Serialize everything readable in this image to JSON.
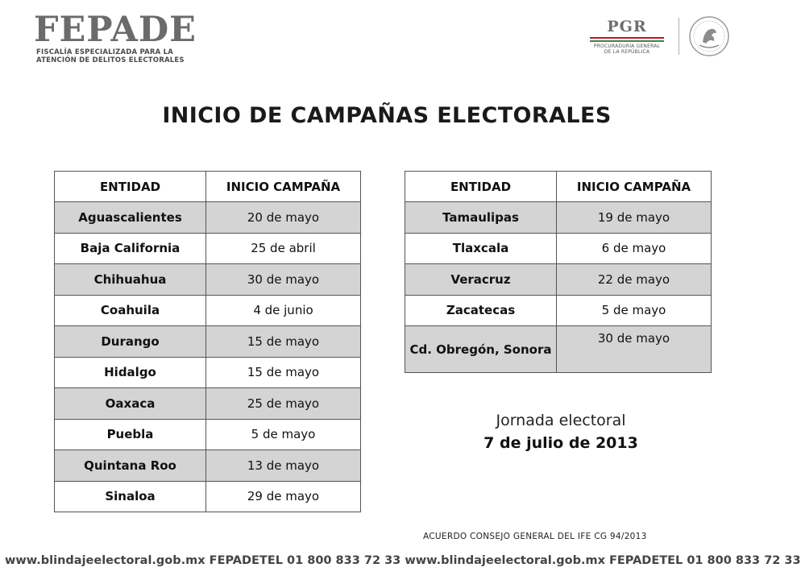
{
  "header": {
    "fepade_word": "FEPADE",
    "fepade_line1": "FISCALÍA ESPECIALIZADA PARA LA",
    "fepade_line2": "ATENCIÓN DE DELITOS ELECTORALES",
    "pgr_word": "PGR",
    "pgr_line1": "PROCURADURÍA GENERAL",
    "pgr_line2": "DE LA REPÚBLICA"
  },
  "title": "INICIO DE CAMPAÑAS ELECTORALES",
  "table_left": {
    "headers": [
      "ENTIDAD",
      "INICIO CAMPAÑA"
    ],
    "rows": [
      {
        "entidad": "Aguascalientes",
        "inicio": "20 de mayo"
      },
      {
        "entidad": "Baja California",
        "inicio": "25 de abril"
      },
      {
        "entidad": "Chihuahua",
        "inicio": "30 de mayo"
      },
      {
        "entidad": "Coahuila",
        "inicio": "4 de junio"
      },
      {
        "entidad": "Durango",
        "inicio": "15 de mayo"
      },
      {
        "entidad": "Hidalgo",
        "inicio": "15 de mayo"
      },
      {
        "entidad": "Oaxaca",
        "inicio": "25 de mayo"
      },
      {
        "entidad": "Puebla",
        "inicio": "5 de mayo"
      },
      {
        "entidad": "Quintana Roo",
        "inicio": "13 de mayo"
      },
      {
        "entidad": "Sinaloa",
        "inicio": "29 de mayo"
      }
    ]
  },
  "table_right": {
    "headers": [
      "ENTIDAD",
      "INICIO CAMPAÑA"
    ],
    "rows": [
      {
        "entidad": "Tamaulipas",
        "inicio": "19 de mayo"
      },
      {
        "entidad": "Tlaxcala",
        "inicio": "6 de mayo"
      },
      {
        "entidad": "Veracruz",
        "inicio": "22 de mayo"
      },
      {
        "entidad": "Zacatecas",
        "inicio": "5 de mayo"
      },
      {
        "entidad": "Cd. Obregón, Sonora",
        "inicio": "30 de mayo"
      }
    ]
  },
  "jornada": {
    "label": "Jornada electoral",
    "date": "7 de julio de 2013"
  },
  "acuerdo": "ACUERDO CONSEJO GENERAL DEL IFE CG 94/2013",
  "footer": "www.blindajeelectoral.gob.mx  FEPADETEL 01 800 833 72 33  www.blindajeelectoral.gob.mx  FEPADETEL 01 800 833 72 33",
  "colors": {
    "row_shade": "#d4d4d4",
    "logo_gray": "#6b6b6b",
    "pgr_red": "#c8102e",
    "pgr_green": "#3a8a3a"
  }
}
